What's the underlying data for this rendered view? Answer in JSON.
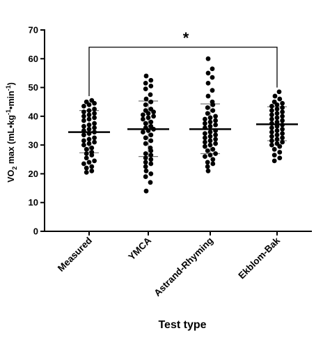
{
  "chart_data": {
    "type": "scatter",
    "subtype": "dot-plot with mean and SD bars",
    "xlabel": "Test type",
    "ylabel_parts": [
      "VO",
      "2",
      " max (mL•kg",
      "-1",
      "•min",
      "-1",
      ")"
    ],
    "ylim": [
      0,
      70
    ],
    "yticks": [
      0,
      10,
      20,
      30,
      40,
      50,
      60,
      70
    ],
    "categories": [
      "Measured",
      "YMCA",
      "Astrand-Rhyming",
      "Ekblom-Bak"
    ],
    "groups": [
      {
        "name": "Measured",
        "mean": 34.5,
        "sd_low": 27.3,
        "sd_high": 42.0,
        "points": [
          20.5,
          21.0,
          22.0,
          22.5,
          23.5,
          24.0,
          24.5,
          25.5,
          26.5,
          27.0,
          27.5,
          28.5,
          29.0,
          30.0,
          30.5,
          31.0,
          31.5,
          32.0,
          32.5,
          33.5,
          34.0,
          34.5,
          35.0,
          35.5,
          36.0,
          36.5,
          37.0,
          37.5,
          38.5,
          39.0,
          39.5,
          40.0,
          40.5,
          41.0,
          41.5,
          42.0,
          42.5,
          43.5,
          44.0,
          44.5,
          45.0,
          45.5
        ]
      },
      {
        "name": "YMCA",
        "mean": 35.5,
        "sd_low": 26.0,
        "sd_high": 45.3,
        "points": [
          14.0,
          17.0,
          19.0,
          20.0,
          21.0,
          22.5,
          23.5,
          24.0,
          25.0,
          25.5,
          26.5,
          27.0,
          28.0,
          29.0,
          30.5,
          31.5,
          32.5,
          33.5,
          34.5,
          35.0,
          35.5,
          36.0,
          36.5,
          37.5,
          38.0,
          39.0,
          39.5,
          40.0,
          40.5,
          41.0,
          41.5,
          42.0,
          42.5,
          44.0,
          45.0,
          46.0,
          47.5,
          49.5,
          50.5,
          51.5,
          52.5,
          54.0
        ]
      },
      {
        "name": "Astrand-Rhyming",
        "mean": 35.5,
        "sd_low": 27.0,
        "sd_high": 44.3,
        "points": [
          21.0,
          22.5,
          23.5,
          24.0,
          25.0,
          26.0,
          26.5,
          27.0,
          28.0,
          28.5,
          29.5,
          30.0,
          30.5,
          31.0,
          31.5,
          32.0,
          32.5,
          33.0,
          33.5,
          34.0,
          34.5,
          35.0,
          36.0,
          36.5,
          37.0,
          37.5,
          38.0,
          38.5,
          39.0,
          39.5,
          40.0,
          41.0,
          42.0,
          43.0,
          44.0,
          45.0,
          47.0,
          49.0,
          51.5,
          53.5,
          55.0,
          56.5,
          60.0
        ]
      },
      {
        "name": "Ekblom-Bak",
        "mean": 37.2,
        "sd_low": 31.5,
        "sd_high": 43.3,
        "points": [
          24.5,
          25.5,
          26.5,
          27.5,
          28.5,
          29.5,
          30.0,
          30.5,
          31.0,
          31.5,
          32.0,
          32.5,
          33.0,
          33.5,
          34.0,
          34.5,
          35.0,
          35.5,
          36.0,
          36.5,
          37.0,
          37.5,
          38.0,
          38.5,
          39.0,
          39.5,
          40.0,
          40.5,
          41.0,
          41.5,
          42.0,
          42.5,
          43.0,
          43.5,
          44.0,
          44.5,
          45.0,
          46.0,
          47.0,
          48.5
        ]
      }
    ],
    "significance": {
      "from": "Measured",
      "to": "Ekblom-Bak",
      "level": 64,
      "label": "*"
    }
  }
}
